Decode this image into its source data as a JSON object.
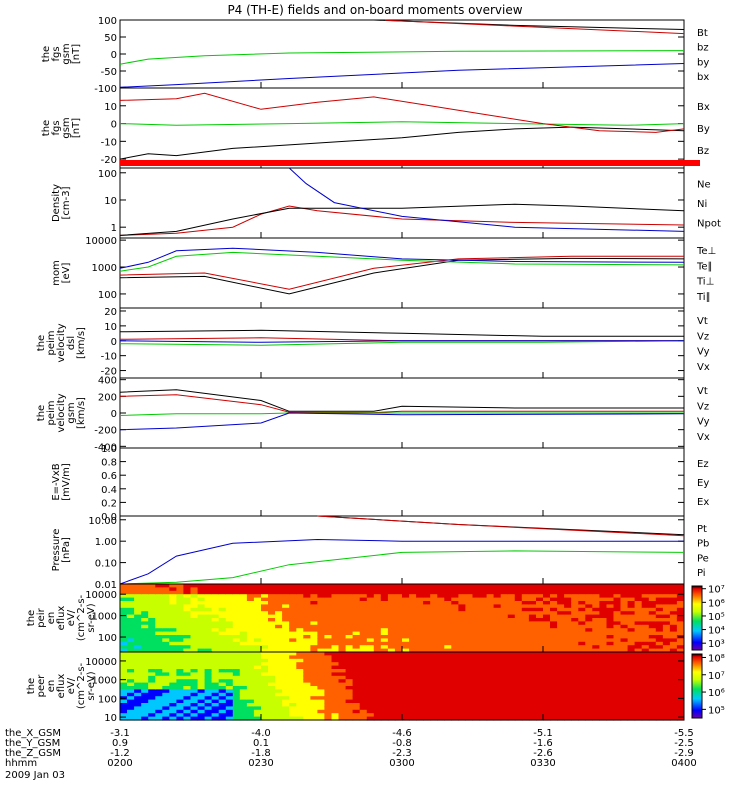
{
  "title": "P4 (TH-E) fields and on-board moments overview",
  "footer": {
    "rows": [
      {
        "label": "the_X_GSM",
        "values": [
          "-3.1",
          "-4.0",
          "-4.6",
          "-5.1",
          "-5.5"
        ]
      },
      {
        "label": "the_Y_GSM",
        "values": [
          "0.9",
          "0.1",
          "-0.8",
          "-1.6",
          "-2.5"
        ]
      },
      {
        "label": "the_Z_GSM",
        "values": [
          "-1.2",
          "-1.8",
          "-2.3",
          "-2.6",
          "-2.9"
        ]
      },
      {
        "label": "hhmm",
        "values": [
          "0200",
          "0230",
          "0300",
          "0330",
          "0400"
        ]
      }
    ],
    "date": "2009 Jan 03"
  },
  "colors": {
    "black": "#000000",
    "red": "#cc0000",
    "green": "#00cc00",
    "blue": "#0000cc",
    "thick_red": "#ff0000"
  },
  "chart_data": [
    {
      "type": "line",
      "ylabel": [
        "the",
        "fgs",
        "gsm",
        "[nT]"
      ],
      "yticks": [
        "100",
        "50",
        "0",
        "-50",
        "-100"
      ],
      "ytick_values": [
        100,
        50,
        0,
        -50,
        -100
      ],
      "ylim": [
        -100,
        100
      ],
      "yscale": "linear",
      "series": [
        {
          "name": "Bt",
          "color": "black",
          "x": [
            0.45,
            0.7,
            1.0
          ],
          "y": [
            100,
            84,
            72
          ]
        },
        {
          "name": "bz",
          "color": "red",
          "x": [
            0.47,
            0.7,
            1.0
          ],
          "y": [
            99,
            82,
            60
          ]
        },
        {
          "name": "by",
          "color": "green",
          "x": [
            0,
            0.05,
            0.15,
            0.3,
            0.6,
            1.0
          ],
          "y": [
            -30,
            -15,
            -5,
            3,
            8,
            10
          ]
        },
        {
          "name": "bx",
          "color": "blue",
          "x": [
            0,
            0.1,
            0.3,
            0.6,
            1.0
          ],
          "y": [
            -98,
            -90,
            -72,
            -48,
            -28
          ]
        }
      ]
    },
    {
      "type": "line",
      "ylabel": [
        "the",
        "fgs",
        "gsm",
        "[nT]"
      ],
      "yticks": [
        "10",
        "0",
        "-10",
        "-20"
      ],
      "ytick_values": [
        10,
        0,
        -10,
        -20
      ],
      "ylim": [
        -25,
        20
      ],
      "yscale": "linear",
      "series": [
        {
          "name": "Bx",
          "color": "black",
          "x": [
            0,
            0.05,
            0.1,
            0.2,
            0.3,
            0.4,
            0.5,
            0.6,
            0.7,
            0.8,
            0.9,
            1.0
          ],
          "y": [
            -20,
            -17,
            -18,
            -14,
            -12,
            -10,
            -8,
            -5,
            -3,
            -2,
            -3,
            -4
          ]
        },
        {
          "name": "By",
          "color": "green",
          "x": [
            0,
            0.1,
            0.3,
            0.5,
            0.7,
            0.9,
            1.0
          ],
          "y": [
            0,
            -1,
            0,
            1,
            0,
            -1,
            0
          ]
        },
        {
          "name": "Bz",
          "color": "red",
          "x": [
            0,
            0.1,
            0.15,
            0.25,
            0.35,
            0.45,
            0.55,
            0.65,
            0.75,
            0.85,
            0.95,
            1.0
          ],
          "y": [
            13,
            14,
            17,
            8,
            12,
            15,
            10,
            5,
            0,
            -4,
            -5,
            -3
          ]
        }
      ],
      "band": {
        "color": "thick_red"
      }
    },
    {
      "type": "line",
      "ylabel": [
        "Density",
        "[cm-3]"
      ],
      "yticks": [
        "100",
        "10",
        "1"
      ],
      "ytick_values": [
        100,
        10,
        1
      ],
      "ylim": [
        0.4,
        150
      ],
      "yscale": "log",
      "series": [
        {
          "name": "Ne",
          "color": "red",
          "x": [
            0,
            0.1,
            0.2,
            0.25,
            0.3,
            0.35,
            0.5,
            0.7,
            1.0
          ],
          "y": [
            0.5,
            0.6,
            1.0,
            3,
            6,
            4,
            2,
            1.5,
            1.2
          ]
        },
        {
          "name": "Ni",
          "color": "black",
          "x": [
            0,
            0.1,
            0.2,
            0.3,
            0.5,
            0.7,
            0.8,
            1.0
          ],
          "y": [
            0.5,
            0.7,
            2,
            5,
            5,
            7,
            6,
            4
          ]
        },
        {
          "name": "Npot",
          "color": "blue",
          "x": [
            0.3,
            0.33,
            0.38,
            0.5,
            0.7,
            1.0
          ],
          "y": [
            150,
            40,
            8,
            2.5,
            1,
            0.7
          ]
        }
      ]
    },
    {
      "type": "line",
      "ylabel": [
        "mom",
        "[eV]"
      ],
      "yticks": [
        "10000",
        "1000",
        "100"
      ],
      "ytick_values": [
        10000,
        1000,
        100
      ],
      "ylim": [
        30,
        12000
      ],
      "yscale": "log",
      "series": [
        {
          "name": "Te⊥",
          "color": "red",
          "x": [
            0,
            0.15,
            0.3,
            0.45,
            0.6,
            0.8,
            1.0
          ],
          "y": [
            500,
            600,
            150,
            900,
            2000,
            2500,
            2500
          ]
        },
        {
          "name": "Te∥",
          "color": "black",
          "x": [
            0,
            0.15,
            0.3,
            0.45,
            0.6,
            0.8,
            1.0
          ],
          "y": [
            400,
            450,
            100,
            600,
            1800,
            2100,
            2000
          ]
        },
        {
          "name": "Ti⊥",
          "color": "blue",
          "x": [
            0,
            0.05,
            0.1,
            0.2,
            0.35,
            0.5,
            0.7,
            1.0
          ],
          "y": [
            900,
            1500,
            4000,
            5000,
            3500,
            2000,
            1600,
            1500
          ]
        },
        {
          "name": "Ti∥",
          "color": "green",
          "x": [
            0,
            0.05,
            0.1,
            0.2,
            0.35,
            0.5,
            0.7,
            1.0
          ],
          "y": [
            700,
            1000,
            2500,
            3500,
            2500,
            1800,
            1300,
            1200
          ]
        }
      ]
    },
    {
      "type": "line",
      "ylabel": [
        "the",
        "peim",
        "velocity",
        "dsl",
        "[km/s]"
      ],
      "yticks": [
        "20",
        "10",
        "0",
        "-10",
        "-20"
      ],
      "ytick_values": [
        20,
        10,
        0,
        -10,
        -20
      ],
      "ylim": [
        -25,
        22
      ],
      "yscale": "linear",
      "series": [
        {
          "name": "Vt",
          "color": "black",
          "x": [
            0,
            0.25,
            0.5,
            0.75,
            1.0
          ],
          "y": [
            6,
            7,
            5,
            3,
            3
          ]
        },
        {
          "name": "Vz",
          "color": "red",
          "x": [
            0,
            0.25,
            0.5,
            0.75,
            1.0
          ],
          "y": [
            1,
            2,
            0,
            0,
            0
          ]
        },
        {
          "name": "Vy",
          "color": "green",
          "x": [
            0,
            0.25,
            0.5,
            0.75,
            1.0
          ],
          "y": [
            -2,
            -3,
            -1,
            -1,
            0
          ]
        },
        {
          "name": "Vx",
          "color": "blue",
          "x": [
            0,
            0.25,
            0.5,
            0.75,
            1.0
          ],
          "y": [
            0,
            -1,
            0,
            0,
            0
          ]
        }
      ]
    },
    {
      "type": "line",
      "ylabel": [
        "the",
        "peim",
        "velocity",
        "gsm",
        "[km/s]"
      ],
      "yticks": [
        "400",
        "200",
        "0",
        "-200",
        "-400"
      ],
      "ytick_values": [
        400,
        200,
        0,
        -200,
        -400
      ],
      "ylim": [
        -420,
        420
      ],
      "yscale": "linear",
      "series": [
        {
          "name": "Vt",
          "color": "black",
          "x": [
            0,
            0.1,
            0.25,
            0.3,
            0.45,
            0.5,
            0.7,
            1.0
          ],
          "y": [
            250,
            280,
            150,
            20,
            20,
            80,
            60,
            60
          ]
        },
        {
          "name": "Vz",
          "color": "red",
          "x": [
            0,
            0.1,
            0.25,
            0.3,
            0.45,
            0.5,
            0.7,
            1.0
          ],
          "y": [
            200,
            220,
            100,
            10,
            5,
            20,
            20,
            20
          ]
        },
        {
          "name": "Vy",
          "color": "green",
          "x": [
            0,
            0.1,
            0.25,
            0.3,
            0.5,
            1.0
          ],
          "y": [
            -30,
            -10,
            -10,
            0,
            0,
            0
          ]
        },
        {
          "name": "Vx",
          "color": "blue",
          "x": [
            0,
            0.1,
            0.25,
            0.3,
            0.5,
            1.0
          ],
          "y": [
            -200,
            -180,
            -120,
            0,
            -20,
            -10
          ]
        }
      ]
    },
    {
      "type": "line",
      "ylabel": [
        "E=-VxB",
        "[mV/m]"
      ],
      "yticks": [
        "1.0",
        "0.8",
        "0.6",
        "0.4",
        "0.2",
        "0.0"
      ],
      "ytick_values": [
        1.0,
        0.8,
        0.6,
        0.4,
        0.2,
        0.0
      ],
      "ylim": [
        0,
        1
      ],
      "yscale": "linear",
      "series": [
        {
          "name": "Ez",
          "color": "red",
          "x": [],
          "y": []
        },
        {
          "name": "Ey",
          "color": "green",
          "x": [],
          "y": []
        },
        {
          "name": "Ex",
          "color": "blue",
          "x": [],
          "y": []
        }
      ]
    },
    {
      "type": "line",
      "ylabel": [
        "Pressure",
        "[nPa]"
      ],
      "yticks": [
        "10.00",
        "1.00",
        "0.10",
        "0.01"
      ],
      "ytick_values": [
        10,
        1,
        0.1,
        0.01
      ],
      "ylim": [
        0.01,
        15
      ],
      "yscale": "log",
      "series": [
        {
          "name": "Pt",
          "color": "black",
          "x": [
            0.35,
            0.6,
            1.0
          ],
          "y": [
            15,
            6,
            2
          ]
        },
        {
          "name": "Pb",
          "color": "red",
          "x": [
            0.35,
            0.6,
            1.0
          ],
          "y": [
            15,
            6,
            1.8
          ]
        },
        {
          "name": "Pe",
          "color": "green",
          "x": [
            0,
            0.1,
            0.2,
            0.3,
            0.5,
            0.7,
            1.0
          ],
          "y": [
            0.01,
            0.012,
            0.02,
            0.08,
            0.3,
            0.35,
            0.3
          ]
        },
        {
          "name": "Pi",
          "color": "blue",
          "x": [
            0,
            0.05,
            0.1,
            0.2,
            0.35,
            0.5,
            0.7,
            1.0
          ],
          "y": [
            0.01,
            0.03,
            0.2,
            0.8,
            1.2,
            1.0,
            1.0,
            1.0
          ]
        }
      ]
    },
    {
      "type": "heatmap",
      "ylabel": [
        "the",
        "peir",
        "en",
        "eflux",
        "eV/",
        "(cm^2-s-",
        "sr-eV)"
      ],
      "yticks": [
        "10000",
        "1000",
        "100"
      ],
      "ytick_values": [
        10000,
        1000,
        100
      ],
      "ylim": [
        20,
        30000
      ],
      "yscale": "log",
      "colorbar": {
        "ticks": [
          "10⁷",
          "10⁶",
          "10⁵",
          "10⁴",
          "10³"
        ],
        "tick_values": [
          7,
          6,
          5,
          4,
          3
        ],
        "range": [
          2.5,
          7.2
        ]
      }
    },
    {
      "type": "heatmap",
      "ylabel": [
        "the",
        "peer",
        "en",
        "eflux",
        "eV/",
        "(cm^2-s-",
        "sr-eV)"
      ],
      "yticks": [
        "10000",
        "1000",
        "100",
        "10"
      ],
      "ytick_values": [
        10000,
        1000,
        100,
        10
      ],
      "ylim": [
        7,
        30000
      ],
      "yscale": "log",
      "colorbar": {
        "ticks": [
          "10⁸",
          "10⁷",
          "10⁶",
          "10⁵"
        ],
        "tick_values": [
          8,
          7,
          6,
          5
        ],
        "range": [
          4.5,
          8.2
        ]
      }
    }
  ]
}
